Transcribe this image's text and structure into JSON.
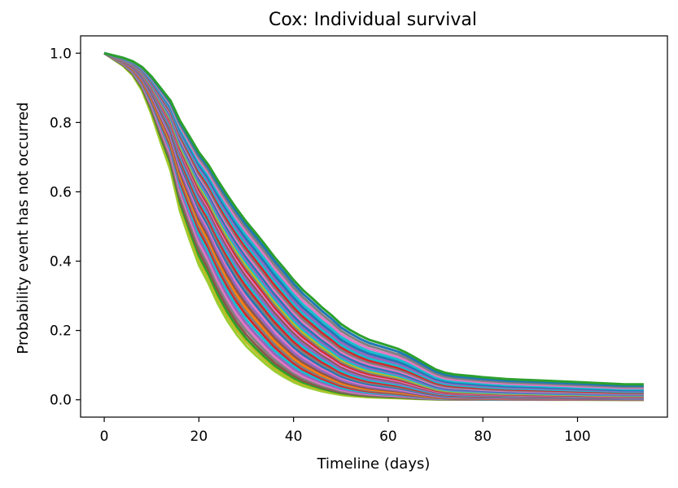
{
  "chart_data": {
    "type": "line",
    "title": "Cox: Individual survival",
    "xlabel": "Timeline (days)",
    "ylabel": "Probability event has not occurred",
    "xlim": [
      -5,
      119
    ],
    "ylim": [
      -0.05,
      1.05
    ],
    "x_ticks": [
      0,
      20,
      40,
      60,
      80,
      100
    ],
    "y_ticks": [
      0.0,
      0.2,
      0.4,
      0.6,
      0.8,
      1.0
    ],
    "x_tick_labels": [
      "0",
      "20",
      "40",
      "60",
      "80",
      "100"
    ],
    "y_tick_labels": [
      "0.0",
      "0.2",
      "0.4",
      "0.6",
      "0.8",
      "1.0"
    ],
    "grid": false,
    "legend": "none",
    "baseline_curve": {
      "x": [
        0,
        2,
        4,
        6,
        8,
        10,
        12,
        14,
        16,
        18,
        20,
        22,
        24,
        26,
        28,
        30,
        32,
        34,
        36,
        38,
        40,
        42,
        44,
        46,
        48,
        50,
        52,
        54,
        56,
        58,
        60,
        62,
        64,
        66,
        68,
        70,
        72,
        74,
        76,
        78,
        80,
        85,
        90,
        95,
        100,
        105,
        110,
        114
      ],
      "y": [
        1.0,
        0.99,
        0.98,
        0.965,
        0.94,
        0.9,
        0.85,
        0.8,
        0.72,
        0.66,
        0.6,
        0.555,
        0.5,
        0.45,
        0.405,
        0.365,
        0.33,
        0.295,
        0.26,
        0.23,
        0.2,
        0.175,
        0.155,
        0.135,
        0.118,
        0.1,
        0.088,
        0.078,
        0.07,
        0.065,
        0.06,
        0.055,
        0.048,
        0.04,
        0.032,
        0.025,
        0.021,
        0.019,
        0.018,
        0.017,
        0.016,
        0.014,
        0.013,
        0.012,
        0.011,
        0.01,
        0.009,
        0.009
      ]
    },
    "series_multipliers": [
      1.85,
      1.78,
      1.72,
      1.66,
      1.6,
      1.55,
      1.5,
      1.45,
      1.4,
      1.36,
      1.32,
      1.28,
      1.24,
      1.2,
      1.17,
      1.14,
      1.11,
      1.08,
      1.05,
      1.02,
      1.0,
      0.98,
      0.96,
      0.94,
      0.92,
      0.9,
      0.88,
      0.86,
      0.84,
      0.82,
      0.8,
      0.78,
      0.76,
      0.74,
      0.72,
      0.7,
      0.68,
      0.66
    ],
    "series_colors": [
      "#9acd32",
      "#bcbd22",
      "#2ca02c",
      "#8c564b",
      "#7f7f7f",
      "#e377c2",
      "#9467bd",
      "#17becf",
      "#d62728",
      "#7f7f7f",
      "#ff7f0e",
      "#8c564b",
      "#9467bd",
      "#e377c2",
      "#1f77b4",
      "#7f7f7f",
      "#d62728",
      "#17becf",
      "#9467bd",
      "#8c564b",
      "#e377c2",
      "#d62728",
      "#7f7f7f",
      "#bcbd22",
      "#17becf",
      "#9467bd",
      "#1f77b4",
      "#e377c2",
      "#7f7f7f",
      "#d62728",
      "#17becf",
      "#9467bd",
      "#1f77b4",
      "#17becf",
      "#e377c2",
      "#7f7f7f",
      "#1f77b4",
      "#2ca02c"
    ]
  }
}
